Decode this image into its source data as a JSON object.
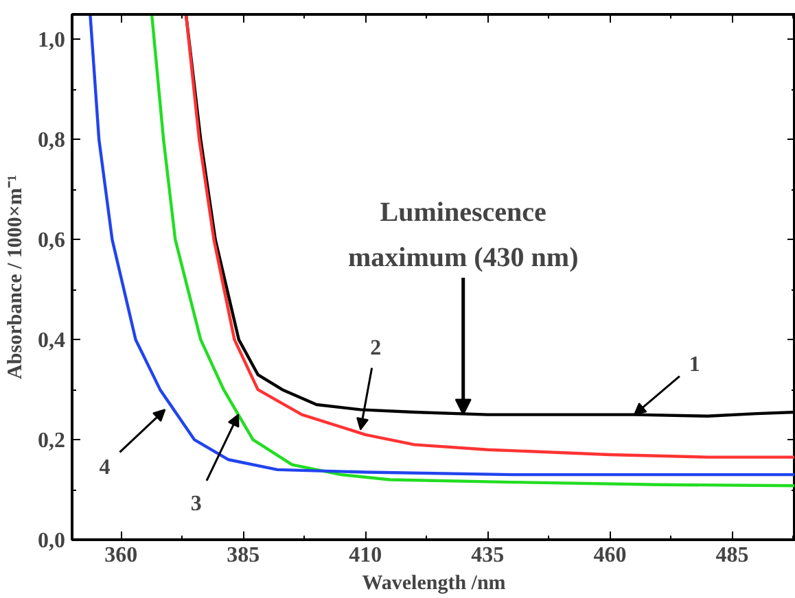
{
  "chart_data": {
    "type": "line",
    "xlabel": "Wavelength /nm",
    "ylabel": "Absorbance / 1000×m⁻¹",
    "xlim": [
      350,
      498
    ],
    "ylim": [
      0,
      1.05
    ],
    "xticks": [
      360,
      385,
      410,
      435,
      460,
      485
    ],
    "yticks": [
      {
        "value": 0,
        "label": "0,0"
      },
      {
        "value": 0.2,
        "label": "0,2"
      },
      {
        "value": 0.4,
        "label": "0,4"
      },
      {
        "value": 0.6,
        "label": "0,6"
      },
      {
        "value": 0.8,
        "label": "0,8"
      },
      {
        "value": 1.0,
        "label": "1,0"
      }
    ],
    "grid": false,
    "marker": "none",
    "line_style": "solid",
    "series": [
      {
        "color": "#000000",
        "x": [
          373.3,
          376.3,
          379.3,
          384.1,
          388,
          393,
          400,
          409,
          420,
          435,
          450,
          465,
          480,
          490,
          498
        ],
        "values": [
          1.05,
          0.8,
          0.6,
          0.4,
          0.33,
          0.3,
          0.27,
          0.26,
          0.255,
          0.25,
          0.25,
          0.25,
          0.247,
          0.252,
          0.255
        ]
      },
      {
        "color": "#ff3333",
        "x": [
          373.3,
          376,
          379,
          383.2,
          388,
          397,
          410,
          420,
          435,
          460,
          480,
          498
        ],
        "values": [
          1.05,
          0.8,
          0.6,
          0.4,
          0.3,
          0.25,
          0.21,
          0.19,
          0.18,
          0.17,
          0.165,
          0.165
        ]
      },
      {
        "color": "#22dd22",
        "x": [
          366.3,
          368.7,
          371.1,
          376.3,
          381,
          387,
          395,
          405,
          415,
          440,
          470,
          498
        ],
        "values": [
          1.05,
          0.8,
          0.6,
          0.4,
          0.3,
          0.2,
          0.15,
          0.13,
          0.12,
          0.115,
          0.11,
          0.108
        ]
      },
      {
        "color": "#2244ee",
        "x": [
          353.7,
          355.5,
          358.2,
          363,
          368,
          375,
          382,
          392,
          410,
          440,
          470,
          498
        ],
        "values": [
          1.05,
          0.8,
          0.6,
          0.4,
          0.3,
          0.2,
          0.16,
          0.14,
          0.135,
          0.13,
          0.13,
          0.13
        ]
      }
    ],
    "annotations": [
      {
        "text": "1",
        "x": 465,
        "y": 0.25
      },
      {
        "text": "2",
        "x": 409,
        "y": 0.22
      },
      {
        "text": "3",
        "x": 384,
        "y": 0.25
      },
      {
        "text": "4",
        "x": 369,
        "y": 0.26
      },
      {
        "text": "Luminescence\nmaximum (430 nm)",
        "x": 430,
        "y": 0.25
      }
    ]
  }
}
